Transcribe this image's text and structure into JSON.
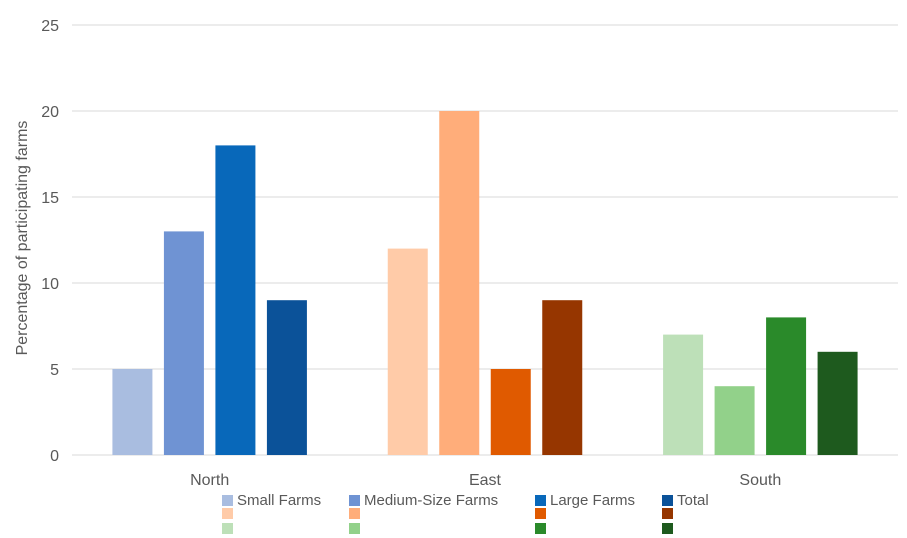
{
  "chart_data": {
    "type": "bar",
    "title": "",
    "xlabel": "",
    "ylabel": "Percentage of participating farms",
    "ylim": [
      0,
      25
    ],
    "yticks": [
      0,
      5,
      10,
      15,
      20,
      25
    ],
    "grid": true,
    "legend_position": "bottom",
    "categories": [
      "North",
      "East",
      "South"
    ],
    "series": [
      {
        "name": "Small Farms",
        "values": [
          5,
          12,
          7
        ],
        "colors": [
          "#A9BDE0",
          "#FFCBA8",
          "#BDE0B8"
        ]
      },
      {
        "name": "Medium-Size Farms",
        "values": [
          13,
          20,
          4
        ],
        "colors": [
          "#6F93D3",
          "#FFAD7A",
          "#92D18A"
        ]
      },
      {
        "name": "Large Farms",
        "values": [
          18,
          5,
          8
        ],
        "colors": [
          "#0868BA",
          "#E05A00",
          "#2A8A2A"
        ]
      },
      {
        "name": "Total",
        "values": [
          9,
          9,
          6
        ],
        "colors": [
          "#0B5299",
          "#963600",
          "#1E5A1E"
        ]
      }
    ]
  }
}
